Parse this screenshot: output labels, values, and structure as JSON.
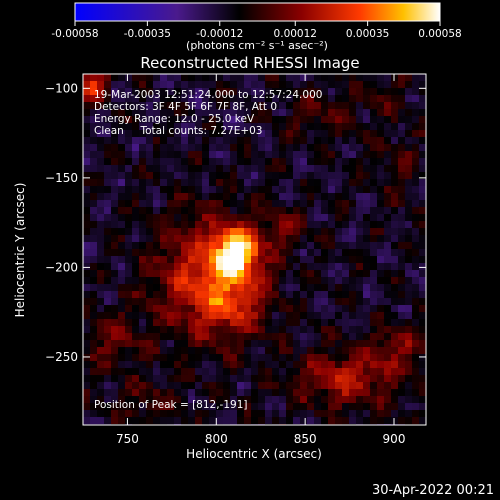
{
  "chart_data": {
    "type": "heatmap",
    "title": "Reconstructed RHESSI Image",
    "xlabel": "Heliocentric X (arcsec)",
    "ylabel": "Heliocentric Y (arcsec)",
    "xlim": [
      725,
      918
    ],
    "ylim": [
      -288,
      -92
    ],
    "x_ticks": [
      750,
      800,
      850,
      900
    ],
    "y_ticks": [
      -100,
      -150,
      -200,
      -250
    ],
    "colorbar": {
      "min": -0.00058,
      "max": 0.00058,
      "ticks": [
        "-0.00058",
        "-0.00035",
        "-0.00012",
        "0.00012",
        "0.00035",
        "0.00058"
      ],
      "tick_values": [
        -0.00058,
        -0.00035,
        -0.00012,
        0.00012,
        0.00035,
        0.00058
      ],
      "units_label": "(photons cm⁻² s⁻¹ asec⁻²)"
    },
    "annotations": [
      "19-Mar-2003 12:51:24.000 to 12:57:24.000",
      "Detectors: 3F 4F 5F 6F 7F 8F, Att 0",
      "Energy Range: 12.0 - 25.0 keV",
      "Clean     Total counts: 7.27E+03"
    ],
    "peak_label": "Position of Peak = [812,-191]",
    "sources": [
      {
        "x": 812,
        "y": -191,
        "peak": 0.00058,
        "sx": 9,
        "sy": 9
      },
      {
        "x": 793,
        "y": -205,
        "peak": 0.00033,
        "sx": 20,
        "sy": 24
      },
      {
        "x": 810,
        "y": -218,
        "peak": 0.00022,
        "sx": 14,
        "sy": 14
      },
      {
        "x": 838,
        "y": -178,
        "peak": 0.00016,
        "sx": 10,
        "sy": 8
      },
      {
        "x": 730,
        "y": -98,
        "peak": 0.00038,
        "sx": 6,
        "sy": 6
      },
      {
        "x": 872,
        "y": -262,
        "peak": 0.00028,
        "sx": 20,
        "sy": 11
      },
      {
        "x": 902,
        "y": -245,
        "peak": 0.00018,
        "sx": 12,
        "sy": 9
      },
      {
        "x": 742,
        "y": -240,
        "peak": 0.00016,
        "sx": 12,
        "sy": 12
      },
      {
        "x": 860,
        "y": -115,
        "peak": 0.00012,
        "sx": 14,
        "sy": 10
      },
      {
        "x": 762,
        "y": -275,
        "peak": 0.00012,
        "sx": 14,
        "sy": 8
      },
      {
        "x": 902,
        "y": -145,
        "peak": 0.0001,
        "sx": 10,
        "sy": 14
      },
      {
        "x": 895,
        "y": -105,
        "peak": 0.0001,
        "sx": 10,
        "sy": 8
      }
    ],
    "background_level": -0.0001,
    "grid": false
  },
  "footer": {
    "timestamp": "30-Apr-2022 00:21"
  }
}
